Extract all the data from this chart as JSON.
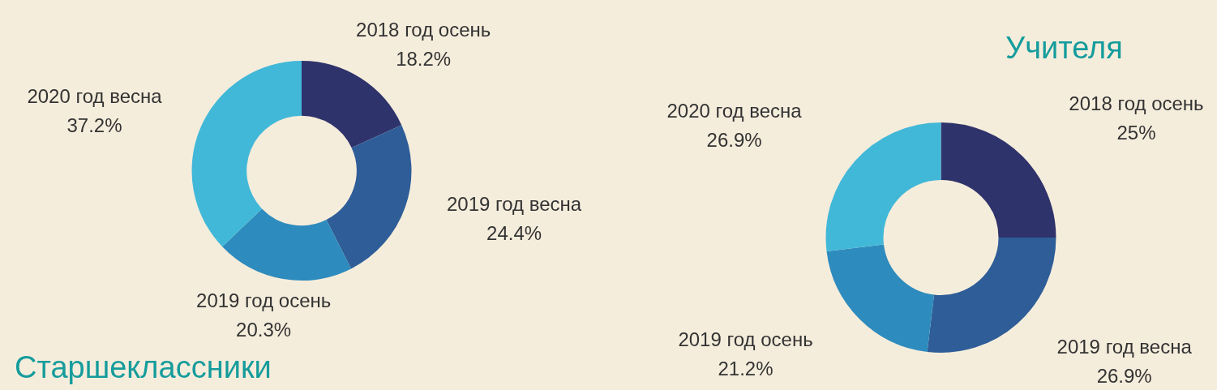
{
  "chart_data": [
    {
      "type": "donut",
      "title": "Старшеклассники",
      "categories": [
        "2018 год осень",
        "2019 год весна",
        "2019 год осень",
        "2020 год весна"
      ],
      "values": [
        18.2,
        24.4,
        20.3,
        37.2
      ],
      "value_labels": [
        "18.2%",
        "24.4%",
        "20.3%",
        "37.2%"
      ],
      "colors": [
        "#2f336b",
        "#2e5d98",
        "#2e8bbd",
        "#42b8d8"
      ],
      "legend": false
    },
    {
      "type": "donut",
      "title": "Учителя",
      "categories": [
        "2018 год осень",
        "2019 год весна",
        "2019 год осень",
        "2020 год весна"
      ],
      "values": [
        25,
        26.9,
        21.2,
        26.9
      ],
      "value_labels": [
        "25%",
        "26.9%",
        "21.2%",
        "26.9%"
      ],
      "colors": [
        "#2f336b",
        "#2e5d98",
        "#2e8bbd",
        "#42b8d8"
      ],
      "legend": false
    }
  ]
}
